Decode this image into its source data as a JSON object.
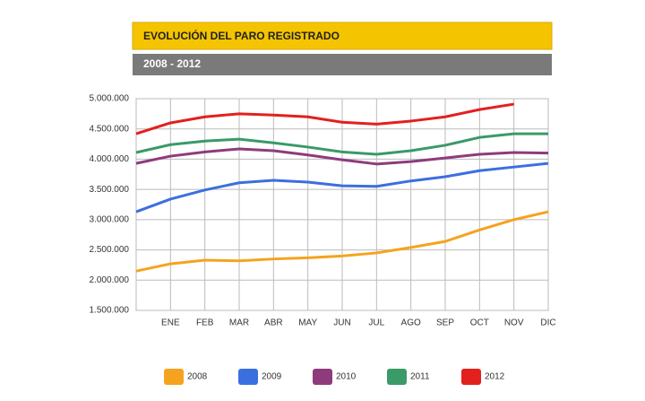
{
  "chart_data": {
    "type": "line",
    "title": "EVOLUCIÓN DEL PARO REGISTRADO",
    "subtitle": "2008 - 2012",
    "categories": [
      null,
      "ENE",
      "FEB",
      "MAR",
      "ABR",
      "MAY",
      "JUN",
      "JUL",
      "AGO",
      "SEP",
      "OCT",
      "NOV",
      "DIC"
    ],
    "ylim": [
      1500000,
      5000000
    ],
    "yticks": [
      {
        "value": 1500000,
        "label": "1.500.000"
      },
      {
        "value": 2000000,
        "label": "2.000.000"
      },
      {
        "value": 2500000,
        "label": "2.500.000"
      },
      {
        "value": 3000000,
        "label": "3.000.000"
      },
      {
        "value": 3500000,
        "label": "3.500.000"
      },
      {
        "value": 4000000,
        "label": "4.000.000"
      },
      {
        "value": 4500000,
        "label": "4.500.000"
      },
      {
        "value": 5000000,
        "label": "5.000.000"
      }
    ],
    "grid": true,
    "legend": "bottom",
    "series": [
      {
        "name": "2008",
        "color": "#f5a31e",
        "values": [
          2150000,
          2270000,
          2330000,
          2320000,
          2350000,
          2370000,
          2400000,
          2450000,
          2540000,
          2640000,
          2830000,
          3000000,
          3130000
        ]
      },
      {
        "name": "2009",
        "color": "#3b6fe0",
        "values": [
          3130000,
          3340000,
          3490000,
          3610000,
          3650000,
          3620000,
          3560000,
          3550000,
          3640000,
          3710000,
          3810000,
          3870000,
          3930000
        ]
      },
      {
        "name": "2010",
        "color": "#8e3b7c",
        "values": [
          3930000,
          4050000,
          4120000,
          4170000,
          4140000,
          4070000,
          3990000,
          3920000,
          3960000,
          4020000,
          4080000,
          4110000,
          4100000
        ]
      },
      {
        "name": "2011",
        "color": "#3a9a68",
        "values": [
          4110000,
          4240000,
          4300000,
          4330000,
          4270000,
          4200000,
          4120000,
          4080000,
          4140000,
          4230000,
          4360000,
          4420000,
          4420000
        ]
      },
      {
        "name": "2012",
        "color": "#e2201e",
        "values": [
          4420000,
          4600000,
          4700000,
          4750000,
          4730000,
          4700000,
          4610000,
          4580000,
          4630000,
          4700000,
          4820000,
          4910000,
          null
        ]
      }
    ]
  }
}
